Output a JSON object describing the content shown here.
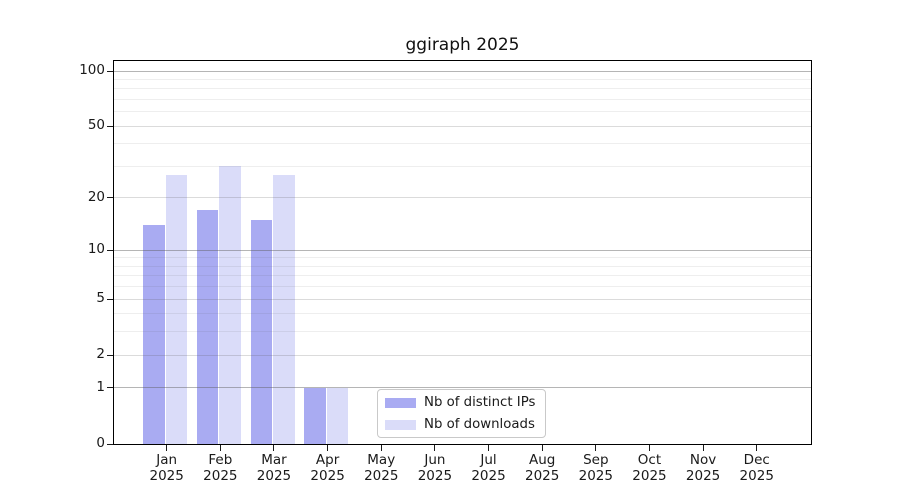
{
  "title": "ggiraph 2025",
  "chart_data": {
    "type": "bar",
    "title": "ggiraph 2025",
    "x": [
      "Jan 2025",
      "Feb 2025",
      "Mar 2025",
      "Apr 2025",
      "May 2025",
      "Jun 2025",
      "Jul 2025",
      "Aug 2025",
      "Sep 2025",
      "Oct 2025",
      "Nov 2025",
      "Dec 2025"
    ],
    "series": [
      {
        "name": "Nb of distinct IPs",
        "color": "#a9abf2",
        "values": [
          14,
          17,
          15,
          1,
          null,
          null,
          null,
          null,
          null,
          null,
          null,
          null
        ]
      },
      {
        "name": "Nb of downloads",
        "color": "#dadcf9",
        "values": [
          27,
          30,
          27,
          1,
          null,
          null,
          null,
          null,
          null,
          null,
          null,
          null
        ]
      }
    ],
    "y_axis": {
      "scale": "log10(1+x)",
      "tick_labels": [
        "0",
        "1",
        "2",
        "5",
        "10",
        "20",
        "50",
        "100"
      ],
      "tick_values": [
        0,
        1,
        2,
        5,
        10,
        20,
        50,
        100
      ],
      "minor_gridline_values": [
        3,
        4,
        6,
        7,
        8,
        9,
        30,
        40,
        60,
        70,
        80,
        90
      ],
      "ylim": [
        0,
        113
      ]
    },
    "xlabel": "",
    "ylabel": "",
    "grid": "horizontal",
    "legend": {
      "position": "lower-center-inside",
      "entries": [
        "Nb of distinct IPs",
        "Nb of downloads"
      ]
    }
  }
}
